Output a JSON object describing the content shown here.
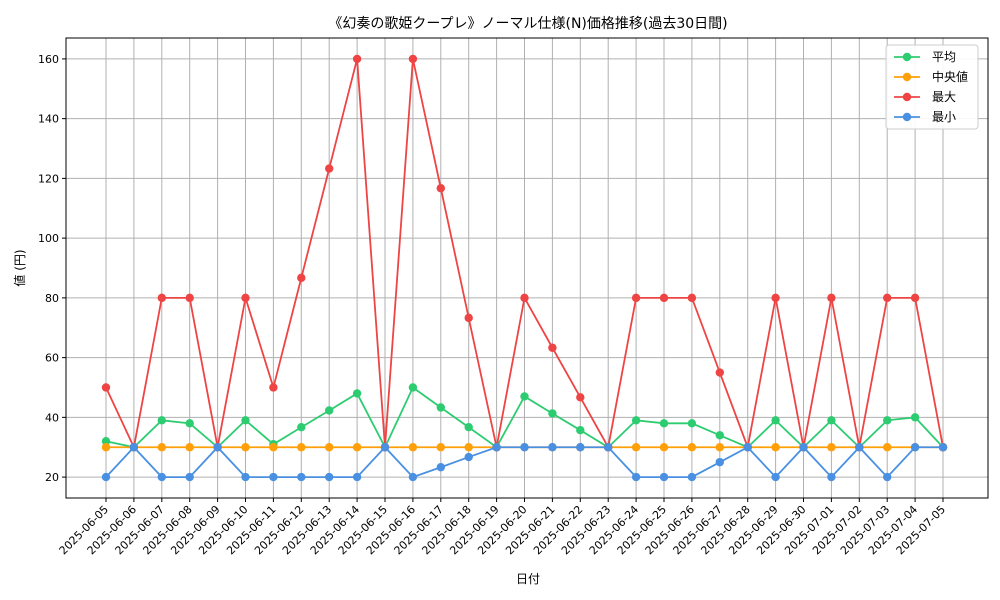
{
  "chart_data": {
    "type": "line",
    "title": "《幻奏の歌姫クープレ》ノーマル仕様(N)価格推移(過去30日間)",
    "xlabel": "日付",
    "ylabel": "値 (円)",
    "ylim": [
      13,
      167
    ],
    "yticks": [
      20,
      40,
      60,
      80,
      100,
      120,
      140,
      160
    ],
    "grid": true,
    "legend_position": "top-right",
    "categories": [
      "2025-06-05",
      "2025-06-06",
      "2025-06-07",
      "2025-06-08",
      "2025-06-09",
      "2025-06-10",
      "2025-06-11",
      "2025-06-12",
      "2025-06-13",
      "2025-06-14",
      "2025-06-15",
      "2025-06-16",
      "2025-06-17",
      "2025-06-18",
      "2025-06-19",
      "2025-06-20",
      "2025-06-21",
      "2025-06-22",
      "2025-06-23",
      "2025-06-24",
      "2025-06-25",
      "2025-06-26",
      "2025-06-27",
      "2025-06-28",
      "2025-06-29",
      "2025-06-30",
      "2025-07-01",
      "2025-07-02",
      "2025-07-03",
      "2025-07-04",
      "2025-07-05"
    ],
    "series": [
      {
        "name": "平均",
        "color": "#2ecc71",
        "values": [
          32,
          30,
          39,
          38,
          30,
          39,
          31,
          36.7,
          42.3,
          48,
          30,
          50,
          43.3,
          36.7,
          30,
          47,
          41.3,
          35.7,
          30,
          39,
          38,
          38,
          34,
          30,
          39,
          30,
          39,
          30,
          39,
          40,
          30
        ]
      },
      {
        "name": "中央値",
        "color": "#ff9f0a",
        "values": [
          30,
          30,
          30,
          30,
          30,
          30,
          30,
          30,
          30,
          30,
          30,
          30,
          30,
          30,
          30,
          30,
          30,
          30,
          30,
          30,
          30,
          30,
          30,
          30,
          30,
          30,
          30,
          30,
          30,
          30,
          30
        ]
      },
      {
        "name": "最大",
        "color": "#ef4444",
        "values": [
          50,
          30,
          80,
          80,
          30,
          80,
          50,
          86.7,
          123.3,
          160,
          30,
          160,
          116.7,
          73.3,
          30,
          80,
          63.3,
          46.7,
          30,
          80,
          80,
          80,
          55,
          30,
          80,
          30,
          80,
          30,
          80,
          80,
          30
        ]
      },
      {
        "name": "最小",
        "color": "#4a90e2",
        "values": [
          20,
          30,
          20,
          20,
          30,
          20,
          20,
          20,
          20,
          20,
          30,
          20,
          23.3,
          26.7,
          30,
          30,
          30,
          30,
          30,
          20,
          20,
          20,
          25,
          30,
          20,
          30,
          20,
          30,
          20,
          30,
          30
        ]
      }
    ]
  }
}
